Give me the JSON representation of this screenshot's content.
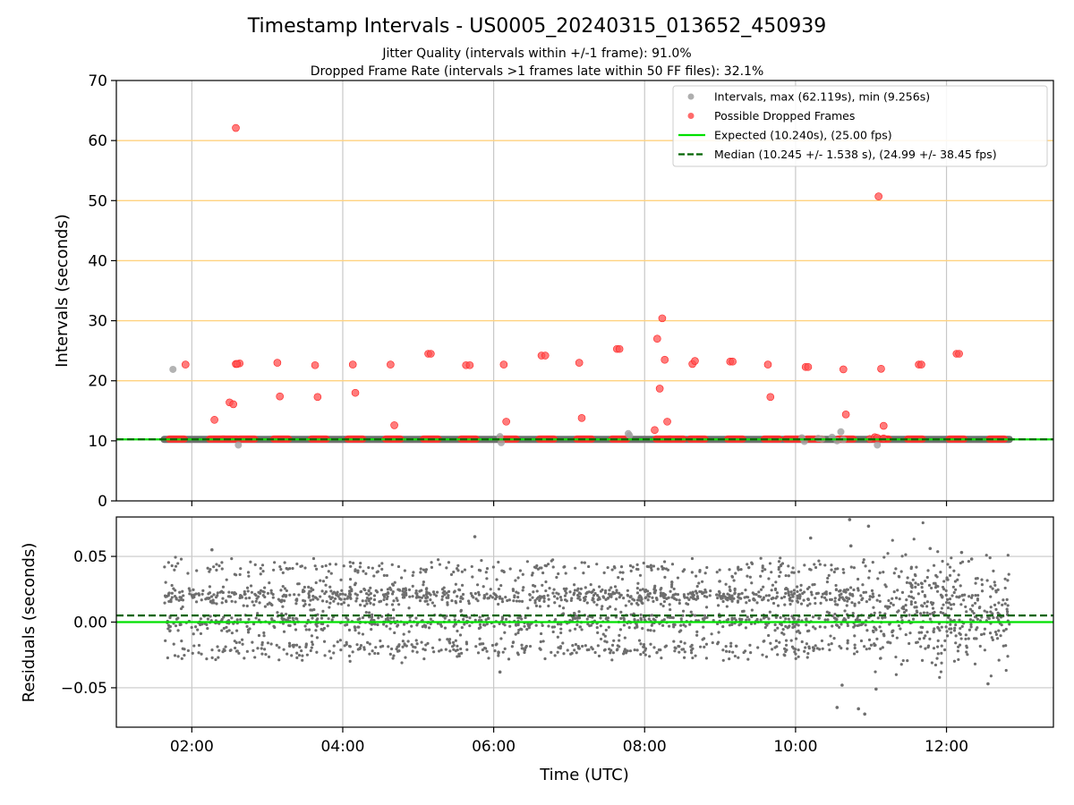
{
  "chart_data": [
    {
      "type": "scatter",
      "title": "Timestamp Intervals - US0005_20240315_013652_450939",
      "subtitle_lines": [
        "Jitter Quality (intervals within +/-1 frame): 91.0%",
        "Dropped Frame Rate (intervals >1 frames late within 50 FF files): 32.1%"
      ],
      "xlabel": "",
      "ylabel": "Intervals (seconds)",
      "xlim": [
        "01:00",
        "13:25"
      ],
      "ylim": [
        0,
        70
      ],
      "yticks": [
        0,
        10,
        20,
        30,
        40,
        50,
        60,
        70
      ],
      "horizontal_reference_lines": [
        20,
        30,
        40,
        50,
        60
      ],
      "reference_line_color": "#ffd27f",
      "legend": {
        "placement": "top-right",
        "entries": [
          {
            "label": "Intervals, max (62.119s), min (9.256s)",
            "marker": "dot",
            "color": "#a0a0a0"
          },
          {
            "label": "Possible Dropped Frames",
            "marker": "dot",
            "color": "#ff5050"
          },
          {
            "label": "Expected (10.240s), (25.00 fps)",
            "marker": "solid",
            "color": "#00e000"
          },
          {
            "label": "Median (10.245 +/- 1.538 s), (24.99 +/- 38.45 fps)",
            "marker": "dashed",
            "color": "#006400"
          }
        ]
      },
      "series": [
        {
          "name": "Possible Dropped Frames",
          "color": "#ff5050",
          "x": [
            "02:35",
            "02:38",
            "01:55",
            "02:18",
            "02:30",
            "02:33",
            "02:35",
            "02:36",
            "03:08",
            "03:10",
            "03:38",
            "03:40",
            "04:08",
            "04:10",
            "04:38",
            "04:41",
            "05:08",
            "05:10",
            "05:38",
            "05:41",
            "06:08",
            "06:10",
            "06:38",
            "06:41",
            "07:08",
            "07:10",
            "07:38",
            "07:40",
            "08:08",
            "08:10",
            "08:12",
            "08:14",
            "08:16",
            "08:18",
            "08:38",
            "08:40",
            "09:08",
            "09:10",
            "09:38",
            "09:40",
            "10:08",
            "10:10",
            "10:38",
            "10:40",
            "11:08",
            "11:10",
            "11:38",
            "11:40",
            "12:08",
            "12:10",
            "10:59",
            "11:03",
            "11:05",
            "11:06",
            "11:10"
          ],
          "y": [
            62.1,
            22.9,
            22.7,
            13.5,
            16.4,
            16.1,
            22.8,
            22.8,
            23.0,
            17.4,
            22.6,
            17.3,
            22.7,
            18.0,
            22.7,
            12.6,
            24.5,
            24.5,
            22.6,
            22.6,
            22.7,
            13.2,
            24.2,
            24.2,
            23.0,
            13.8,
            25.3,
            25.3,
            11.8,
            27.0,
            18.7,
            30.4,
            23.5,
            13.2,
            22.8,
            23.3,
            23.2,
            23.2,
            22.7,
            17.3,
            22.3,
            22.3,
            21.9,
            14.4,
            22.0,
            12.5,
            22.7,
            22.7,
            24.5,
            24.5,
            10.3,
            10.6,
            10.5,
            50.7,
            10.4
          ]
        },
        {
          "name": "Intervals, max (62.119s), min (9.256s)",
          "color": "#a0a0a0",
          "x": [
            "01:45",
            "02:37",
            "06:05",
            "06:06",
            "07:47",
            "07:48",
            "10:05",
            "10:07",
            "10:18",
            "10:21",
            "10:29",
            "10:33",
            "10:36",
            "10:38",
            "11:05"
          ],
          "y": [
            21.9,
            9.3,
            10.7,
            9.7,
            11.2,
            10.9,
            10.5,
            9.9,
            10.4,
            10.3,
            10.6,
            10.0,
            11.5,
            10.2,
            9.3
          ]
        }
      ],
      "expected_line": 10.24,
      "median_line": 10.245,
      "baseline_band": {
        "x_range": [
          "01:38",
          "12:50"
        ],
        "y": 10.24
      }
    },
    {
      "type": "scatter",
      "title": "",
      "xlabel": "Time (UTC)",
      "ylabel": "Residuals (seconds)",
      "xlim": [
        "01:00",
        "13:25"
      ],
      "ylim": [
        -0.08,
        0.08
      ],
      "yticks": [
        -0.05,
        0.0,
        0.05
      ],
      "ytick_labels": [
        "−0.05",
        "0.00",
        "0.05"
      ],
      "xticks": [
        "02:00",
        "04:00",
        "06:00",
        "08:00",
        "10:00",
        "12:00"
      ],
      "zero_line": 0.0,
      "median_offset_line": 0.005,
      "residual_distribution": {
        "x_range": [
          "01:38",
          "12:50"
        ],
        "levels": [
          0.02,
          0.0,
          -0.02,
          0.04
        ],
        "spread": 0.004
      },
      "outliers": {
        "x": [
          "02:16",
          "05:45",
          "06:05",
          "10:12",
          "10:33",
          "10:37",
          "10:43",
          "10:44",
          "10:50",
          "10:55",
          "10:58",
          "11:04",
          "11:47",
          "12:12",
          "12:20",
          "12:33"
        ],
        "y": [
          0.055,
          0.065,
          -0.038,
          0.064,
          -0.065,
          -0.048,
          0.078,
          0.058,
          -0.066,
          -0.07,
          0.073,
          -0.051,
          0.056,
          0.053,
          0.048,
          -0.047
        ]
      }
    }
  ]
}
